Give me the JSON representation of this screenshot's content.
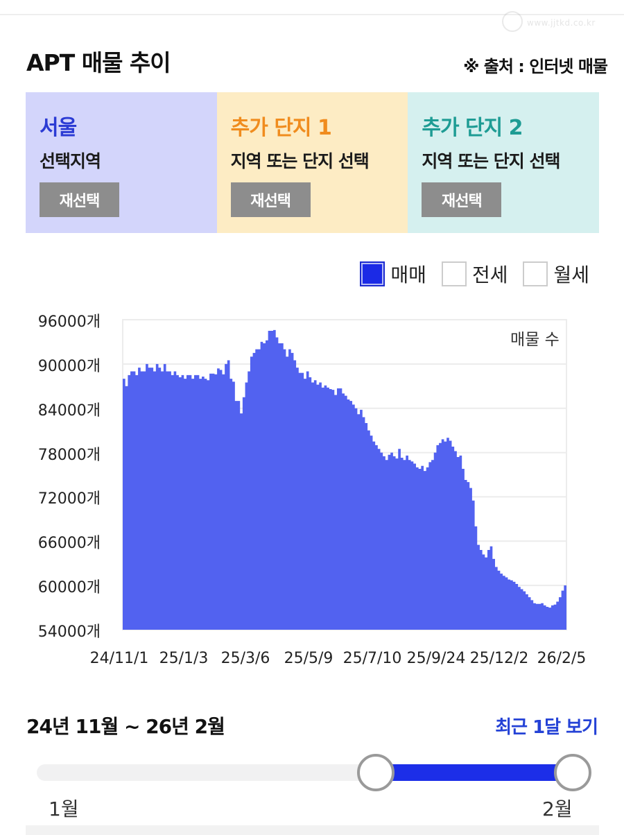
{
  "header": {
    "title": "APT 매물 추이",
    "source_note": "※ 출처 : 인터넷 매물",
    "watermark_text": "www.jjtkd.co.kr"
  },
  "region_cards": [
    {
      "title": "서울",
      "subtitle": "선택지역",
      "button": "재선택",
      "title_color": "#2b3bd4",
      "bg": "#d3d5fb"
    },
    {
      "title": "추가 단지 1",
      "subtitle": "지역 또는 단지 선택",
      "button": "재선택",
      "title_color": "#f08c1e",
      "bg": "#fdecc4"
    },
    {
      "title": "추가 단지 2",
      "subtitle": "지역 또는 단지 선택",
      "button": "재선택",
      "title_color": "#1e9c94",
      "bg": "#d5f0ef"
    }
  ],
  "legend": [
    {
      "label": "매매",
      "checked": true
    },
    {
      "label": "전세",
      "checked": false
    },
    {
      "label": "월세",
      "checked": false
    }
  ],
  "chart_data": {
    "type": "area",
    "title": "APT 매물 추이",
    "series_label": "매물 수",
    "xlabel": "",
    "ylabel": "매물 수",
    "ylim": [
      54000,
      96000
    ],
    "y_ticks": [
      "96000개",
      "90000개",
      "84000개",
      "78000개",
      "72000개",
      "66000개",
      "60000개",
      "54000개"
    ],
    "y_tick_values": [
      96000,
      90000,
      84000,
      78000,
      72000,
      66000,
      60000,
      54000
    ],
    "x_ticks": [
      "24/11/1",
      "25/1/3",
      "25/3/6",
      "25/5/9",
      "25/7/10",
      "25/9/24",
      "25/12/2",
      "26/2/5"
    ],
    "grid": true,
    "legend_position": "top-right",
    "color": "#5262f0",
    "series": [
      {
        "name": "매매",
        "values": [
          88000,
          87000,
          88500,
          89000,
          89000,
          88500,
          89500,
          89000,
          89000,
          90000,
          89500,
          89500,
          89000,
          90000,
          89500,
          89000,
          90000,
          89000,
          89000,
          88500,
          89000,
          88500,
          88200,
          88500,
          88000,
          88500,
          88500,
          88000,
          88500,
          88500,
          88000,
          88300,
          88000,
          87800,
          88700,
          88700,
          88600,
          89400,
          89200,
          88600,
          90000,
          90500,
          88000,
          87600,
          85000,
          85000,
          83300,
          85500,
          87500,
          89000,
          91000,
          91500,
          92000,
          92000,
          93000,
          92800,
          93200,
          94500,
          94500,
          94600,
          93600,
          92800,
          92800,
          92000,
          91000,
          92000,
          91500,
          90500,
          89500,
          88800,
          88800,
          88000,
          89000,
          88200,
          87500,
          87800,
          87200,
          87500,
          86800,
          87100,
          86800,
          86600,
          86500,
          85800,
          86700,
          86700,
          86000,
          85700,
          85200,
          85000,
          84500,
          84000,
          83200,
          83800,
          82800,
          82000,
          81000,
          80300,
          79500,
          79000,
          78500,
          78000,
          77500,
          77000,
          77700,
          78000,
          77500,
          77200,
          78500,
          77300,
          77000,
          77600,
          77000,
          76800,
          76500,
          76000,
          75800,
          76200,
          75500,
          76000,
          76700,
          77000,
          78000,
          79000,
          79300,
          79800,
          79500,
          80000,
          79600,
          78800,
          78200,
          77400,
          77600,
          75800,
          74300,
          74000,
          73200,
          71500,
          68000,
          65500,
          64800,
          64200,
          63800,
          64800,
          65300,
          63600,
          62500,
          62000,
          61600,
          61300,
          61100,
          60800,
          60700,
          60500,
          60200,
          59800,
          59500,
          59200,
          58800,
          58400,
          58000,
          57600,
          57500,
          57500,
          57600,
          57300,
          57100,
          57000,
          57300,
          57400,
          57800,
          58400,
          59300,
          60000
        ]
      }
    ]
  },
  "range": {
    "title": "24년 11월 ~ 26년 2월",
    "recent_link": "최근 1달 보기",
    "start_label": "1월",
    "end_label": "2월"
  }
}
